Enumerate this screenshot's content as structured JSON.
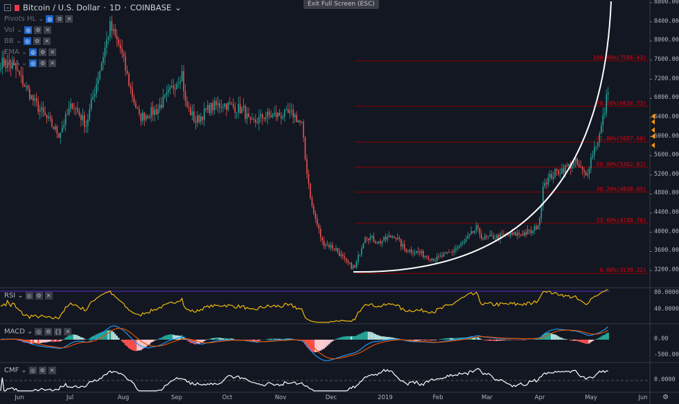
{
  "header": {
    "symbol": "Bitcoin / U.S. Dollar",
    "interval": "1D",
    "exchange": "COINBASE",
    "title_sep": "·"
  },
  "exit_fullscreen": "Exit Full Screen (ESC)",
  "indicators": [
    {
      "label": "Pivots HL"
    },
    {
      "label": "Vol"
    },
    {
      "label": "BB"
    },
    {
      "label": "EMA"
    },
    {
      "label": "EMA"
    }
  ],
  "panes": {
    "rsi": "RSI",
    "macd": "MACD",
    "cmf": "CMF"
  },
  "colors": {
    "bg": "#131722",
    "up": "#26a69a",
    "down": "#ef5350",
    "fib": "#8b0000",
    "rsi": "#f0b90b",
    "macd": "#2196f3",
    "signal": "#e65100",
    "cmf": "#ffffff",
    "marker": "#ff9800"
  },
  "price_axis": [
    "8800.00",
    "8400.00",
    "8000.00",
    "7600.00",
    "7200.00",
    "6800.00",
    "6400.00",
    "6000.00",
    "5600.00",
    "5200.00",
    "4800.00",
    "4400.00",
    "4000.00",
    "3600.00",
    "3200.00"
  ],
  "rsi_axis": [
    "80.0000",
    "40.0000"
  ],
  "macd_axis": [
    "0.00",
    "-500.00"
  ],
  "cmf_axis": [
    "0.0000"
  ],
  "time_axis": [
    "Jun",
    "Jul",
    "Aug",
    "Sep",
    "Oct",
    "Nov",
    "Dec",
    "2019",
    "Feb",
    "Mar",
    "Apr",
    "May",
    "Jun"
  ],
  "fib_levels": [
    {
      "label": "100.00%(7586.43)",
      "price": 7586.43
    },
    {
      "label": "78.60%(6634.73)",
      "price": 6634.73
    },
    {
      "label": "61.80%(5887.60)",
      "price": 5887.6
    },
    {
      "label": "50.00%(5362.83)",
      "price": 5362.83
    },
    {
      "label": "38.20%(4838.05)",
      "price": 4838.05
    },
    {
      "label": "23.60%(4188.76)",
      "price": 4188.76
    },
    {
      "label": "0.00%(3139.22)",
      "price": 3139.22
    }
  ],
  "chart_data": {
    "type": "candlestick",
    "price_range": [
      3200,
      8800
    ],
    "close_path": [
      [
        "2018-05-21",
        7550
      ],
      [
        "2018-05-29",
        7450
      ],
      [
        "2018-06-10",
        6700
      ],
      [
        "2018-06-24",
        6050
      ],
      [
        "2018-07-02",
        6690
      ],
      [
        "2018-07-10",
        6250
      ],
      [
        "2018-07-18",
        7410
      ],
      [
        "2018-07-24",
        8300
      ],
      [
        "2018-07-30",
        7840
      ],
      [
        "2018-08-05",
        6980
      ],
      [
        "2018-08-10",
        6400
      ],
      [
        "2018-08-20",
        6550
      ],
      [
        "2018-08-26",
        6830
      ],
      [
        "2018-09-04",
        7340
      ],
      [
        "2018-09-06",
        6690
      ],
      [
        "2018-09-12",
        6320
      ],
      [
        "2018-09-20",
        6600
      ],
      [
        "2018-09-28",
        6690
      ],
      [
        "2018-10-10",
        6550
      ],
      [
        "2018-10-14",
        6250
      ],
      [
        "2018-10-22",
        6430
      ],
      [
        "2018-11-08",
        6470
      ],
      [
        "2018-11-13",
        6250
      ],
      [
        "2018-11-15",
        5530
      ],
      [
        "2018-11-19",
        4520
      ],
      [
        "2018-11-25",
        3790
      ],
      [
        "2018-12-03",
        3650
      ],
      [
        "2018-12-09",
        3360
      ],
      [
        "2018-12-14",
        3250
      ],
      [
        "2018-12-20",
        3940
      ],
      [
        "2018-12-28",
        3790
      ],
      [
        "2019-01-06",
        3940
      ],
      [
        "2019-01-12",
        3650
      ],
      [
        "2019-01-20",
        3580
      ],
      [
        "2019-01-30",
        3430
      ],
      [
        "2019-02-08",
        3580
      ],
      [
        "2019-02-16",
        3790
      ],
      [
        "2019-02-23",
        4080
      ],
      [
        "2019-02-27",
        3870
      ],
      [
        "2019-03-15",
        3940
      ],
      [
        "2019-03-28",
        4010
      ],
      [
        "2019-04-01",
        4230
      ],
      [
        "2019-04-03",
        5020
      ],
      [
        "2019-04-10",
        5240
      ],
      [
        "2019-04-22",
        5460
      ],
      [
        "2019-04-28",
        5170
      ],
      [
        "2019-05-02",
        5670
      ],
      [
        "2019-05-06",
        6035
      ],
      [
        "2019-05-09",
        6550
      ],
      [
        "2019-05-12",
        7270
      ]
    ]
  }
}
